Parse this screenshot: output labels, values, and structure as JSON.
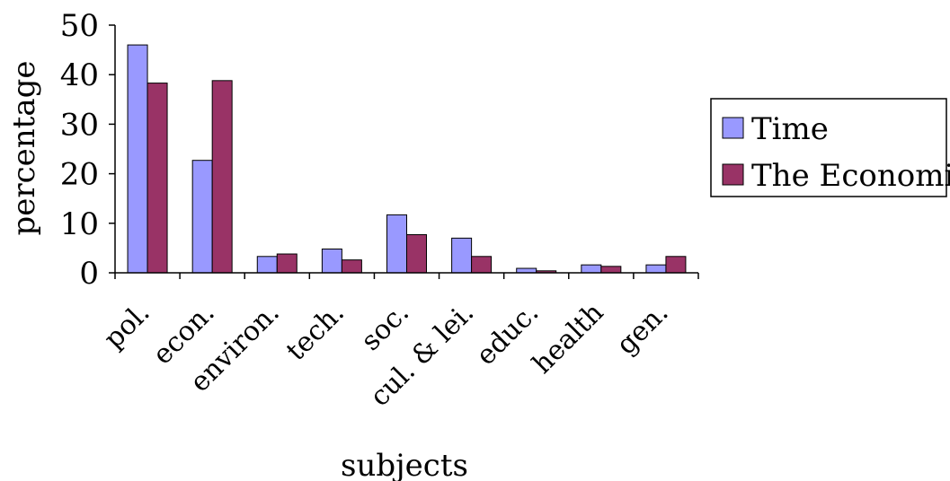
{
  "chart_data": {
    "type": "bar",
    "xlabel": "subjects",
    "ylabel": "percentage",
    "ylim": [
      0,
      50
    ],
    "yticks": [
      0,
      10,
      20,
      30,
      40,
      50
    ],
    "grid": false,
    "legend_position": "right",
    "categories": [
      "pol.",
      "econ.",
      "environ.",
      "tech.",
      "soc.",
      "cul. & lei.",
      "educ.",
      "health",
      "gen."
    ],
    "series": [
      {
        "name": "Time",
        "color": "#9999ff",
        "values": [
          46,
          22.7,
          3.3,
          4.8,
          11.7,
          7,
          0.9,
          1.6,
          1.6
        ]
      },
      {
        "name": "The Economist",
        "color": "#993366",
        "values": [
          38.3,
          38.8,
          3.8,
          2.6,
          7.7,
          3.3,
          0.4,
          1.3,
          3.3
        ]
      }
    ]
  }
}
